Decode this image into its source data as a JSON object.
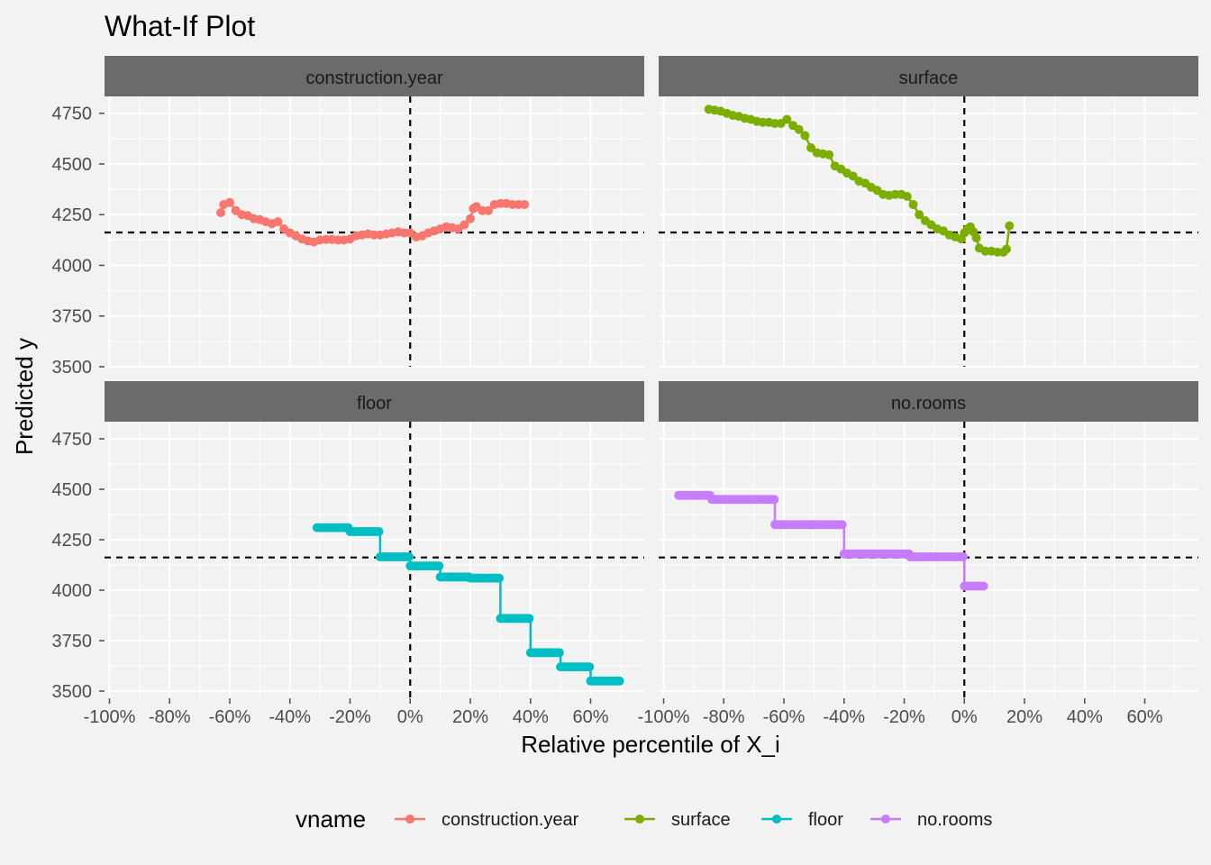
{
  "chart_data": {
    "type": "line",
    "title": "What-If Plot",
    "xlabel": "Relative percentile of X_i",
    "ylabel": "Predicted y",
    "xlim": [
      -100,
      75
    ],
    "ylim": [
      3500,
      4800
    ],
    "x_ticks": [
      -100,
      -80,
      -60,
      -40,
      -20,
      0,
      20,
      40,
      60
    ],
    "x_tick_labels": [
      "-100%",
      "-80%",
      "-60%",
      "-40%",
      "-20%",
      "0%",
      "20%",
      "40%",
      "60%"
    ],
    "y_ticks": [
      3500,
      3750,
      4000,
      4250,
      4500,
      4750
    ],
    "y_tick_labels": [
      "3500",
      "3750",
      "4000",
      "4250",
      "4500",
      "4750"
    ],
    "reference_x": 0,
    "reference_y": 4162,
    "grid": true,
    "legend": {
      "title": "vname",
      "position": "bottom"
    },
    "facets": [
      {
        "name": "construction.year",
        "color": "#f8766d",
        "x": [
          -63,
          -62,
          -60,
          -58,
          -56,
          -54,
          -52,
          -50,
          -48,
          -46,
          -44,
          -42,
          -40,
          -38,
          -36,
          -34,
          -32,
          -30,
          -28,
          -26,
          -24,
          -22,
          -20,
          -18,
          -16,
          -14,
          -12,
          -10,
          -8,
          -6,
          -4,
          -2,
          0,
          2,
          4,
          6,
          8,
          10,
          12,
          14,
          16,
          18,
          20,
          21,
          22,
          24,
          26,
          28,
          30,
          32,
          34,
          36,
          38
        ],
        "y": [
          4260,
          4300,
          4310,
          4270,
          4250,
          4245,
          4230,
          4225,
          4215,
          4205,
          4215,
          4180,
          4160,
          4145,
          4130,
          4120,
          4115,
          4125,
          4128,
          4128,
          4125,
          4125,
          4130,
          4145,
          4150,
          4155,
          4150,
          4150,
          4155,
          4160,
          4165,
          4160,
          4160,
          4140,
          4145,
          4160,
          4170,
          4180,
          4190,
          4185,
          4180,
          4200,
          4230,
          4280,
          4290,
          4270,
          4270,
          4300,
          4305,
          4305,
          4300,
          4300,
          4300
        ]
      },
      {
        "name": "surface",
        "color": "#7cae00",
        "x": [
          -85,
          -83,
          -81,
          -79,
          -77,
          -75,
          -73,
          -71,
          -69,
          -67,
          -65,
          -63,
          -61,
          -59,
          -57,
          -55,
          -53,
          -51,
          -49,
          -47,
          -45,
          -43,
          -41,
          -39,
          -37,
          -35,
          -33,
          -31,
          -29,
          -27,
          -25,
          -23,
          -21,
          -19,
          -17,
          -15,
          -13,
          -11,
          -9,
          -7,
          -5,
          -3,
          -1,
          0,
          1,
          2,
          3,
          4,
          5,
          7,
          9,
          11,
          13,
          14,
          15
        ],
        "y": [
          4770,
          4765,
          4760,
          4750,
          4740,
          4735,
          4725,
          4720,
          4710,
          4705,
          4705,
          4700,
          4700,
          4720,
          4690,
          4670,
          4640,
          4580,
          4555,
          4550,
          4545,
          4490,
          4475,
          4455,
          4440,
          4415,
          4405,
          4385,
          4370,
          4350,
          4345,
          4350,
          4350,
          4340,
          4300,
          4250,
          4220,
          4200,
          4180,
          4170,
          4150,
          4140,
          4130,
          4160,
          4180,
          4190,
          4165,
          4135,
          4085,
          4070,
          4070,
          4065,
          4065,
          4080,
          4195
        ]
      },
      {
        "name": "floor",
        "color": "#00bfc4",
        "x": [
          -31,
          -20,
          -20,
          -10,
          -10,
          0,
          0,
          10,
          10,
          20,
          20,
          30,
          30,
          40,
          40,
          50,
          50,
          60,
          60,
          70
        ],
        "y": [
          4310,
          4310,
          4290,
          4290,
          4165,
          4165,
          4120,
          4120,
          4065,
          4065,
          4060,
          4060,
          3860,
          3860,
          3690,
          3690,
          3620,
          3620,
          3550,
          3550
        ]
      },
      {
        "name": "no.rooms",
        "color": "#c77cff",
        "x": [
          -95,
          -84,
          -84,
          -63,
          -63,
          -40,
          -40,
          -18,
          -18,
          0,
          0,
          7
        ],
        "y": [
          4470,
          4470,
          4450,
          4450,
          4325,
          4325,
          4180,
          4180,
          4165,
          4165,
          4020,
          4020
        ]
      }
    ]
  }
}
